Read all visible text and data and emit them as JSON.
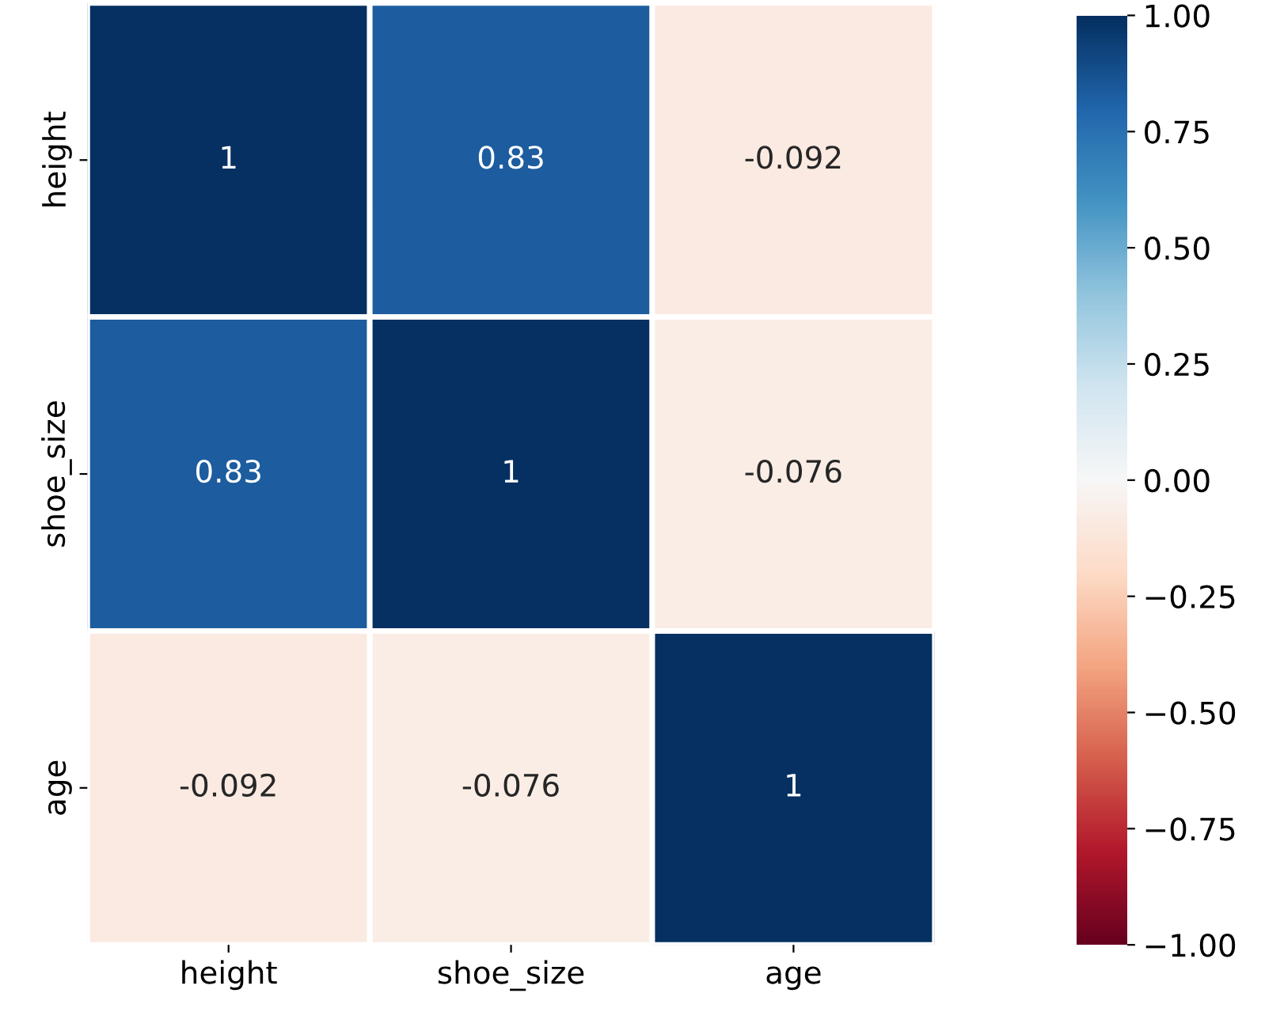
{
  "chart_data": {
    "type": "heatmap",
    "categories": [
      "height",
      "shoe_size",
      "age"
    ],
    "y_categories": [
      "height",
      "shoe_size",
      "age"
    ],
    "cells": [
      [
        1,
        0.83,
        -0.092
      ],
      [
        0.83,
        1,
        -0.076
      ],
      [
        -0.092,
        -0.076,
        1
      ]
    ],
    "data_labels": true,
    "clim": [
      -1,
      1
    ],
    "cticks": [
      {
        "value": -1,
        "label": "−1.00"
      },
      {
        "value": -0.75,
        "label": "−0.75"
      },
      {
        "value": -0.5,
        "label": "−0.50"
      },
      {
        "value": -0.25,
        "label": "−0.25"
      },
      {
        "value": 0,
        "label": "0.00"
      },
      {
        "value": 0.25,
        "label": "0.25"
      },
      {
        "value": 0.5,
        "label": "0.50"
      },
      {
        "value": 0.75,
        "label": "0.75"
      },
      {
        "value": 1,
        "label": "1.00"
      }
    ]
  }
}
